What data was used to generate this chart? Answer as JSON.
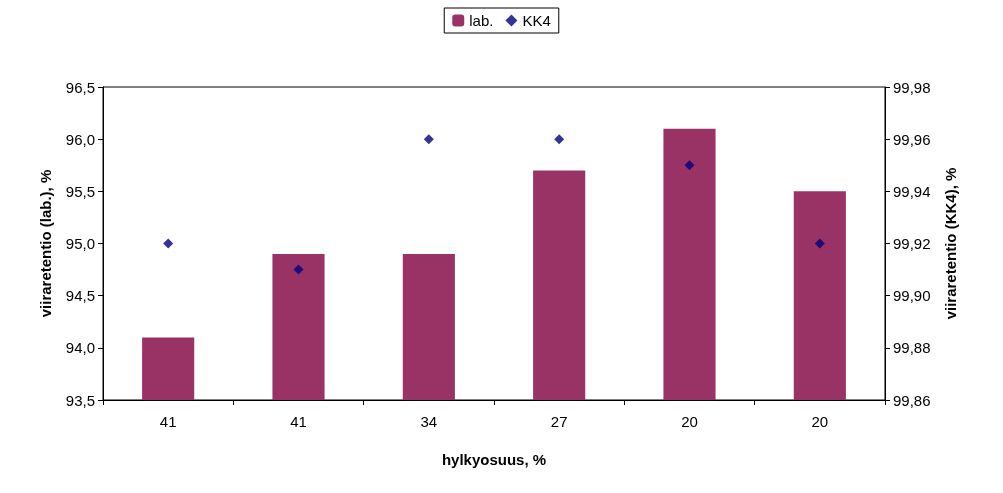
{
  "chart_data": {
    "type": "bar",
    "xlabel": "hylkyosuus, %",
    "ylabel": "viiraretentio (lab.), %",
    "y2label": "viiraretentio (KK4), %",
    "categories": [
      "41",
      "41",
      "34",
      "27",
      "20",
      "20"
    ],
    "series": [
      {
        "name": "lab.",
        "color": "#993366",
        "values": [
          94.1,
          94.9,
          94.9,
          95.7,
          96.1,
          95.5
        ]
      },
      {
        "name": "KK4",
        "type": "scatter",
        "axis": "y2",
        "color": "#000080",
        "values": [
          99.92,
          99.91,
          99.96,
          99.96,
          99.95,
          99.92
        ]
      }
    ],
    "ylim": [
      93.5,
      96.5
    ],
    "yticks": [
      {
        "value": 93.5,
        "label": "93,5"
      },
      {
        "value": 94,
        "label": "94,0"
      },
      {
        "value": 94.5,
        "label": "94,5"
      },
      {
        "value": 95,
        "label": "95,0"
      },
      {
        "value": 95.5,
        "label": "95,5"
      },
      {
        "value": 96,
        "label": "96,0"
      },
      {
        "value": 96.5,
        "label": "96,5"
      }
    ],
    "y2lim": [
      99.86,
      99.98
    ],
    "y2ticks": [
      {
        "value": 99.86,
        "label": "99,86"
      },
      {
        "value": 99.88,
        "label": "99,88"
      },
      {
        "value": 99.9,
        "label": "99,90"
      },
      {
        "value": 99.92,
        "label": "99,92"
      },
      {
        "value": 99.94,
        "label": "99,94"
      },
      {
        "value": 99.96,
        "label": "99,96"
      },
      {
        "value": 99.98,
        "label": "99,98"
      }
    ],
    "marker": "diamond",
    "legend": "top",
    "grid": false
  }
}
